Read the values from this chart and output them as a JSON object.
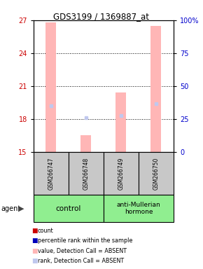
{
  "title": "GDS3199 / 1369887_at",
  "samples": [
    "GSM266747",
    "GSM266748",
    "GSM266749",
    "GSM266750"
  ],
  "bar_values": [
    26.8,
    16.5,
    20.4,
    26.5
  ],
  "rank_values": [
    19.2,
    18.1,
    18.3,
    19.4
  ],
  "absent_bar_color": "#FFB6B6",
  "absent_rank_color": "#C0C8EE",
  "ylim_left": [
    15,
    27
  ],
  "yticks_left": [
    15,
    18,
    21,
    24,
    27
  ],
  "yticks_right": [
    0,
    25,
    50,
    75,
    100
  ],
  "ytick_right_labels": [
    "0",
    "25",
    "50",
    "75",
    "100%"
  ],
  "ylabel_left_color": "#CC0000",
  "ylabel_right_color": "#0000CC",
  "grid_lines": [
    18,
    21,
    24
  ],
  "group_label_1": "control",
  "group_label_2": "anti-Mullerian\nhormone",
  "group_bg_color": "#90EE90",
  "sample_bg_color": "#C8C8C8",
  "legend_items": [
    {
      "label": "count",
      "color": "#CC0000"
    },
    {
      "label": "percentile rank within the sample",
      "color": "#0000BB"
    },
    {
      "label": "value, Detection Call = ABSENT",
      "color": "#FFB6B6"
    },
    {
      "label": "rank, Detection Call = ABSENT",
      "color": "#C0C8EE"
    }
  ]
}
